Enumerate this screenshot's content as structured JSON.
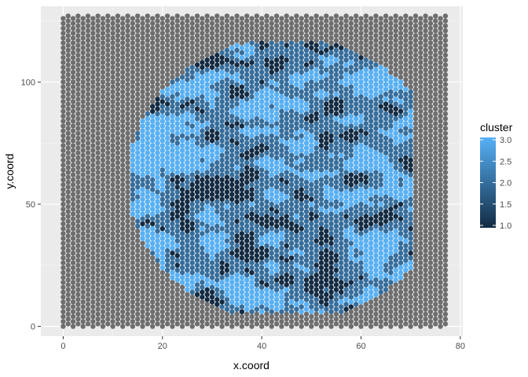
{
  "chart_data": {
    "type": "scatter",
    "title": "",
    "xlabel": "x.coord",
    "ylabel": "y.coord",
    "xlim": [
      -4.5,
      80.5
    ],
    "ylim": [
      -4,
      131
    ],
    "x_ticks": [
      0,
      20,
      40,
      60,
      80
    ],
    "y_ticks": [
      0,
      50,
      100
    ],
    "x_tick_labels": [
      "0",
      "20",
      "40",
      "60",
      "80"
    ],
    "y_tick_labels": [
      "0",
      "50",
      "100"
    ],
    "grid": true,
    "background": "#ebebeb",
    "spot_grid": {
      "x_range": [
        0,
        77
      ],
      "y_range": [
        0,
        127
      ],
      "spot_pattern": "hexagonal",
      "background_color": "#6e6e6e"
    },
    "tissue_region": {
      "shape": "circle",
      "center": [
        45,
        60
      ],
      "radius": 57,
      "x_range": [
        7,
        70
      ],
      "y_range": [
        6,
        116
      ]
    },
    "color_scale": {
      "variable": "cluster",
      "low": 1.0,
      "high": 3.0,
      "low_color": "#132b43",
      "high_color": "#56b1f7"
    },
    "legend": {
      "title": "cluster",
      "breaks": [
        3.0,
        2.5,
        2.0,
        1.5,
        1.0
      ],
      "labels": [
        "3.0",
        "2.5",
        "2.0",
        "1.5",
        "1.0"
      ],
      "position": "right"
    }
  }
}
